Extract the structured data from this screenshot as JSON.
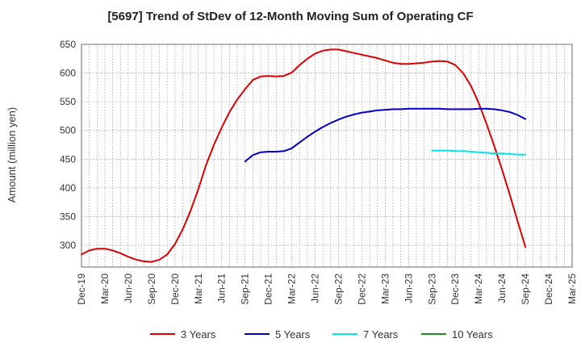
{
  "chart_data": {
    "type": "line",
    "title": "[5697]  Trend of StDev of 12-Month Moving Sum of Operating CF",
    "xlabel": "",
    "ylabel": "Amount (million yen)",
    "ylim": [
      262,
      650
    ],
    "yticks": [
      300,
      350,
      400,
      450,
      500,
      550,
      600,
      650
    ],
    "xticks": [
      "Dec-19",
      "Mar-20",
      "Jun-20",
      "Sep-20",
      "Dec-20",
      "Mar-21",
      "Jun-21",
      "Sep-21",
      "Dec-21",
      "Mar-22",
      "Jun-22",
      "Sep-22",
      "Dec-22",
      "Mar-23",
      "Jun-23",
      "Sep-23",
      "Dec-23",
      "Mar-24",
      "Jun-24",
      "Sep-24",
      "Dec-24",
      "Mar-25"
    ],
    "grid": true,
    "legend_position": "bottom",
    "series": [
      {
        "name": "3 Years",
        "color": "#dd0000",
        "x": [
          "Dec-19",
          "Jan-20",
          "Feb-20",
          "Mar-20",
          "Apr-20",
          "May-20",
          "Jun-20",
          "Jul-20",
          "Aug-20",
          "Sep-20",
          "Oct-20",
          "Nov-20",
          "Dec-20",
          "Jan-21",
          "Feb-21",
          "Mar-21",
          "Apr-21",
          "May-21",
          "Jun-21",
          "Jul-21",
          "Aug-21",
          "Sep-21",
          "Oct-21",
          "Nov-21",
          "Dec-21",
          "Jan-22",
          "Feb-22",
          "Mar-22",
          "Apr-22",
          "May-22",
          "Jun-22",
          "Jul-22",
          "Aug-22",
          "Sep-22",
          "Oct-22",
          "Nov-22",
          "Dec-22",
          "Jan-23",
          "Feb-23",
          "Mar-23",
          "Apr-23",
          "May-23",
          "Jun-23",
          "Jul-23",
          "Aug-23",
          "Sep-23",
          "Oct-23",
          "Nov-23",
          "Dec-23",
          "Jan-24",
          "Feb-24",
          "Mar-24",
          "Apr-24",
          "May-24",
          "Jun-24",
          "Jul-24",
          "Aug-24",
          "Sep-24"
        ],
        "values": [
          284,
          291,
          294,
          294,
          291,
          286,
          280,
          275,
          272,
          271,
          275,
          284,
          302,
          328,
          360,
          398,
          440,
          475,
          505,
          532,
          554,
          572,
          588,
          594,
          595,
          594,
          595,
          601,
          614,
          625,
          634,
          639,
          641,
          641,
          638,
          635,
          632,
          629,
          626,
          622,
          618,
          616,
          616,
          617,
          618,
          620,
          621,
          620,
          614,
          600,
          578,
          548,
          512,
          473,
          432,
          388,
          342,
          297
        ]
      },
      {
        "name": "5 Years",
        "color": "#0000cc",
        "x": [
          "Sep-21",
          "Oct-21",
          "Nov-21",
          "Dec-21",
          "Jan-22",
          "Feb-22",
          "Mar-22",
          "Apr-22",
          "May-22",
          "Jun-22",
          "Jul-22",
          "Aug-22",
          "Sep-22",
          "Oct-22",
          "Nov-22",
          "Dec-22",
          "Jan-23",
          "Feb-23",
          "Mar-23",
          "Apr-23",
          "May-23",
          "Jun-23",
          "Jul-23",
          "Aug-23",
          "Sep-23",
          "Oct-23",
          "Nov-23",
          "Dec-23",
          "Jan-24",
          "Feb-24",
          "Mar-24",
          "Apr-24",
          "May-24",
          "Jun-24",
          "Jul-24",
          "Aug-24",
          "Sep-24"
        ],
        "values": [
          446,
          457,
          462,
          463,
          463,
          464,
          469,
          479,
          489,
          498,
          506,
          513,
          519,
          524,
          528,
          531,
          533,
          535,
          536,
          537,
          537,
          538,
          538,
          538,
          538,
          538,
          537,
          537,
          537,
          537,
          538,
          538,
          537,
          535,
          532,
          527,
          520
        ]
      },
      {
        "name": "7 Years",
        "color": "#00e5e5",
        "x": [
          "Sep-23",
          "Oct-23",
          "Nov-23",
          "Dec-23",
          "Jan-24",
          "Feb-24",
          "Mar-24",
          "Apr-24",
          "May-24",
          "Jun-24",
          "Jul-24",
          "Aug-24",
          "Sep-24"
        ],
        "values": [
          465,
          465,
          465,
          464,
          464,
          463,
          462,
          461,
          460,
          460,
          459,
          458,
          458
        ]
      },
      {
        "name": "10 Years",
        "color": "#228822",
        "x": [],
        "values": []
      }
    ]
  }
}
